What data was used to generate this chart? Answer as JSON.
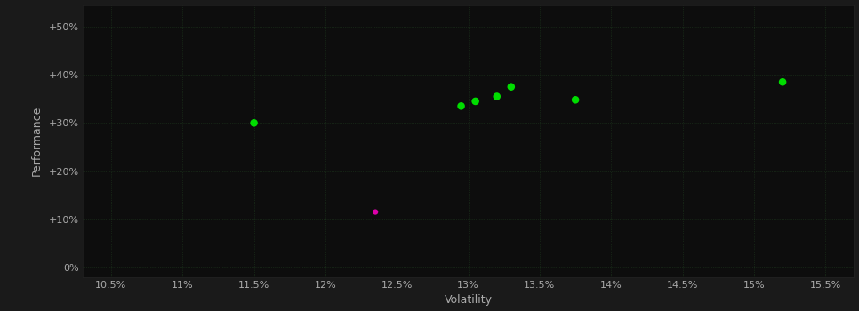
{
  "background_color": "#1a1a1a",
  "plot_bg_color": "#0d0d0d",
  "grid_color": "#1e3a1e",
  "xlabel": "Volatility",
  "ylabel": "Performance",
  "xlim": [
    0.103,
    0.157
  ],
  "ylim": [
    -0.02,
    0.545
  ],
  "xticks": [
    0.105,
    0.11,
    0.115,
    0.12,
    0.125,
    0.13,
    0.135,
    0.14,
    0.145,
    0.15,
    0.155
  ],
  "xticklabels": [
    "10.5%",
    "11%",
    "11.5%",
    "12%",
    "12.5%",
    "13%",
    "13.5%",
    "14%",
    "14.5%",
    "15%",
    "15.5%"
  ],
  "yticks": [
    0.0,
    0.1,
    0.2,
    0.3,
    0.4,
    0.5
  ],
  "yticklabels": [
    "0%",
    "+10%",
    "+20%",
    "+30%",
    "+40%",
    "+50%"
  ],
  "green_points": [
    [
      0.115,
      0.3
    ],
    [
      0.1295,
      0.335
    ],
    [
      0.1305,
      0.345
    ],
    [
      0.132,
      0.355
    ],
    [
      0.133,
      0.375
    ],
    [
      0.1375,
      0.348
    ],
    [
      0.152,
      0.385
    ]
  ],
  "magenta_points": [
    [
      0.1235,
      0.115
    ]
  ],
  "point_color_green": "#00dd00",
  "point_color_magenta": "#dd00aa",
  "marker_size_green": 38,
  "marker_size_magenta": 20,
  "tick_color": "#aaaaaa",
  "tick_fontsize": 8,
  "label_fontsize": 9,
  "label_color": "#aaaaaa",
  "grid_linewidth": 0.5,
  "grid_linestyle": ":"
}
